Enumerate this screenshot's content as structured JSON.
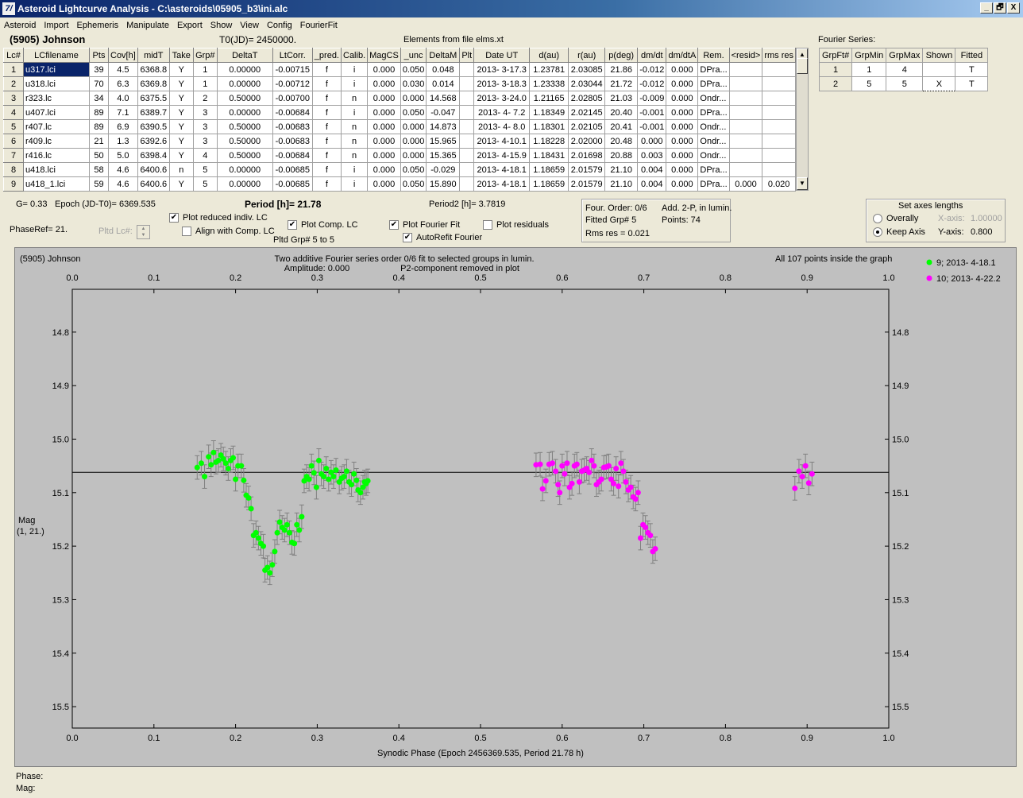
{
  "window": {
    "title": "Asteroid Lightcurve Analysis - C:\\asteroids\\05905_b3\\ini.alc",
    "app_icon": "7/",
    "controls": [
      "_",
      "🗗",
      "X"
    ]
  },
  "menu": [
    "Asteroid",
    "Import",
    "Ephemeris",
    "Manipulate",
    "Export",
    "Show",
    "View",
    "Config",
    "FourierFit"
  ],
  "header": {
    "object": "(5905) Johnson",
    "t0": "T0(JD)= 2450000.",
    "elements": "Elements from file elms.xt",
    "fourier_series_label": "Fourier Series:"
  },
  "table": {
    "columns": [
      "Lc#",
      "LCfilename",
      "Pts",
      "Cov[h]",
      "midT",
      "Take",
      "Grp#",
      "DeltaT",
      "LtCorr.",
      "_pred.",
      "Calib.",
      "MagCS",
      "_unc",
      "DeltaM",
      "Plt",
      "Date UT",
      "d(au)",
      "r(au)",
      "p(deg)",
      "dm/dt",
      "dm/dtA",
      "Rem.",
      "<resid>",
      "rms res"
    ],
    "rows": [
      [
        "1",
        "u317.lci",
        "39",
        "4.5",
        "6368.8",
        "Y",
        "1",
        "0.00000",
        "-0.00715",
        "f",
        "i",
        "0.000",
        "0.050",
        "0.048",
        "",
        "2013- 3-17.3",
        "1.23781",
        "2.03085",
        "21.86",
        "-0.012",
        "0.000",
        "DPra...",
        "",
        ""
      ],
      [
        "2",
        "u318.lci",
        "70",
        "6.3",
        "6369.8",
        "Y",
        "1",
        "0.00000",
        "-0.00712",
        "f",
        "i",
        "0.000",
        "0.030",
        "0.014",
        "",
        "2013- 3-18.3",
        "1.23338",
        "2.03044",
        "21.72",
        "-0.012",
        "0.000",
        "DPra...",
        "",
        ""
      ],
      [
        "3",
        "r323.lc",
        "34",
        "4.0",
        "6375.5",
        "Y",
        "2",
        "0.50000",
        "-0.00700",
        "f",
        "n",
        "0.000",
        "0.000",
        "14.568",
        "",
        "2013- 3-24.0",
        "1.21165",
        "2.02805",
        "21.03",
        "-0.009",
        "0.000",
        "Ondr...",
        "",
        ""
      ],
      [
        "4",
        "u407.lci",
        "89",
        "7.1",
        "6389.7",
        "Y",
        "3",
        "0.00000",
        "-0.00684",
        "f",
        "i",
        "0.000",
        "0.050",
        "-0.047",
        "",
        "2013- 4- 7.2",
        "1.18349",
        "2.02145",
        "20.40",
        "-0.001",
        "0.000",
        "DPra...",
        "",
        ""
      ],
      [
        "5",
        "r407.lc",
        "89",
        "6.9",
        "6390.5",
        "Y",
        "3",
        "0.50000",
        "-0.00683",
        "f",
        "n",
        "0.000",
        "0.000",
        "14.873",
        "",
        "2013- 4- 8.0",
        "1.18301",
        "2.02105",
        "20.41",
        "-0.001",
        "0.000",
        "Ondr...",
        "",
        ""
      ],
      [
        "6",
        "r409.lc",
        "21",
        "1.3",
        "6392.6",
        "Y",
        "3",
        "0.50000",
        "-0.00683",
        "f",
        "n",
        "0.000",
        "0.000",
        "15.965",
        "",
        "2013- 4-10.1",
        "1.18228",
        "2.02000",
        "20.48",
        "0.000",
        "0.000",
        "Ondr...",
        "",
        ""
      ],
      [
        "7",
        "r416.lc",
        "50",
        "5.0",
        "6398.4",
        "Y",
        "4",
        "0.50000",
        "-0.00684",
        "f",
        "n",
        "0.000",
        "0.000",
        "15.365",
        "",
        "2013- 4-15.9",
        "1.18431",
        "2.01698",
        "20.88",
        "0.003",
        "0.000",
        "Ondr...",
        "",
        ""
      ],
      [
        "8",
        "u418.lci",
        "58",
        "4.6",
        "6400.6",
        "n",
        "5",
        "0.00000",
        "-0.00685",
        "f",
        "i",
        "0.000",
        "0.050",
        "-0.029",
        "",
        "2013- 4-18.1",
        "1.18659",
        "2.01579",
        "21.10",
        "0.004",
        "0.000",
        "DPra...",
        "",
        ""
      ],
      [
        "9",
        "u418_1.lci",
        "59",
        "4.6",
        "6400.6",
        "Y",
        "5",
        "0.00000",
        "-0.00685",
        "f",
        "i",
        "0.000",
        "0.050",
        "15.890",
        "",
        "2013- 4-18.1",
        "1.18659",
        "2.01579",
        "21.10",
        "0.004",
        "0.000",
        "DPra...",
        "0.000",
        "0.020"
      ]
    ]
  },
  "fourier_table": {
    "columns": [
      "GrpFt#",
      "GrpMin",
      "GrpMax",
      "Shown",
      "Fitted"
    ],
    "rows": [
      [
        "1",
        "1",
        "4",
        "",
        "T"
      ],
      [
        "2",
        "5",
        "5",
        "X",
        "T"
      ]
    ]
  },
  "info": {
    "g": "G= 0.33",
    "epoch": "Epoch (JD-T0)= 6369.535",
    "period": "Period [h]= 21.78",
    "period2": "Period2 [h]= 3.7819",
    "phaseref": "PhaseRef= 21.",
    "pltd_lc": "Pltd Lc#:",
    "pltd_grp": "Pltd Grp#  5  to  5"
  },
  "checkboxes": {
    "plot_reduced": {
      "label": "Plot reduced indiv. LC",
      "checked": true
    },
    "align_comp": {
      "label": "Align with Comp. LC",
      "checked": false
    },
    "plot_comp": {
      "label": "Plot Comp. LC",
      "checked": true
    },
    "plot_fourier": {
      "label": "Plot Fourier Fit",
      "checked": true
    },
    "plot_residuals": {
      "label": "Plot residuals",
      "checked": false
    },
    "autorefit": {
      "label": "AutoRefit Fourier",
      "checked": true
    }
  },
  "fit_info": {
    "four_order": "Four. Order:  0/6",
    "add": "Add. 2-P, in lumin.",
    "fitted_grp": "Fitted Grp# 5",
    "points": "Points: 74",
    "rms": "Rms res     = 0.021"
  },
  "axes_box": {
    "title": "Set axes lengths",
    "overally": "Overally",
    "keep_axis": "Keep Axis",
    "xaxis_label": "X-axis:",
    "xaxis_val": "1.00000",
    "yaxis_label": "Y-axis:",
    "yaxis_val": "0.800",
    "selected": "keep_axis"
  },
  "plot": {
    "object": "(5905) Johnson",
    "line1": "Two additive Fourier series order 0/6 fit to selected groups in lumin.",
    "amplitude": "Amplitude: 0.000",
    "p2note": "P2-component removed in plot",
    "inside": "All 107 points inside the graph",
    "ylabel1": "Mag",
    "ylabel2": "(1, 21.)",
    "xlabel": "Synodic Phase (Epoch 2456369.535, Period 21.78 h)"
  },
  "status": {
    "phase": "Phase:",
    "mag": "Mag:"
  },
  "chart_data": {
    "type": "scatter",
    "x_ticks": [
      "0.0",
      "0.1",
      "0.2",
      "0.3",
      "0.4",
      "0.5",
      "0.6",
      "0.7",
      "0.8",
      "0.9",
      "1.0"
    ],
    "y_ticks": [
      "14.8",
      "14.9",
      "15.0",
      "15.1",
      "15.2",
      "15.3",
      "15.4",
      "15.5"
    ],
    "xlim": [
      0,
      1
    ],
    "ylim": [
      14.72,
      15.54
    ],
    "y_inverted": true,
    "fit_line": 15.062,
    "error_bar": 0.022,
    "legend_position": "top-right",
    "series": [
      {
        "name": "9; 2013- 4-18.1",
        "color": "#00ff00",
        "points": [
          [
            0.153,
            15.053
          ],
          [
            0.158,
            15.045
          ],
          [
            0.162,
            15.07
          ],
          [
            0.167,
            15.033
          ],
          [
            0.17,
            15.048
          ],
          [
            0.173,
            15.025
          ],
          [
            0.176,
            15.043
          ],
          [
            0.179,
            15.04
          ],
          [
            0.182,
            15.03
          ],
          [
            0.185,
            15.037
          ],
          [
            0.188,
            15.045
          ],
          [
            0.191,
            15.055
          ],
          [
            0.194,
            15.04
          ],
          [
            0.197,
            15.035
          ],
          [
            0.2,
            15.075
          ],
          [
            0.203,
            15.05
          ],
          [
            0.207,
            15.05
          ],
          [
            0.21,
            15.077
          ],
          [
            0.213,
            15.105
          ],
          [
            0.216,
            15.11
          ],
          [
            0.219,
            15.13
          ],
          [
            0.222,
            15.18
          ],
          [
            0.225,
            15.175
          ],
          [
            0.228,
            15.185
          ],
          [
            0.231,
            15.195
          ],
          [
            0.234,
            15.2
          ],
          [
            0.236,
            15.245
          ],
          [
            0.239,
            15.24
          ],
          [
            0.242,
            15.25
          ],
          [
            0.245,
            15.235
          ],
          [
            0.248,
            15.21
          ],
          [
            0.251,
            15.175
          ],
          [
            0.254,
            15.155
          ],
          [
            0.257,
            15.165
          ],
          [
            0.26,
            15.17
          ],
          [
            0.263,
            15.16
          ],
          [
            0.266,
            15.175
          ],
          [
            0.269,
            15.193
          ],
          [
            0.272,
            15.195
          ],
          [
            0.275,
            15.16
          ],
          [
            0.278,
            15.17
          ],
          [
            0.281,
            15.145
          ],
          [
            0.284,
            15.078
          ],
          [
            0.287,
            15.07
          ],
          [
            0.29,
            15.075
          ],
          [
            0.293,
            15.05
          ],
          [
            0.296,
            15.063
          ],
          [
            0.299,
            15.09
          ],
          [
            0.302,
            15.04
          ],
          [
            0.305,
            15.065
          ],
          [
            0.308,
            15.07
          ],
          [
            0.311,
            15.055
          ],
          [
            0.314,
            15.075
          ],
          [
            0.317,
            15.062
          ],
          [
            0.32,
            15.07
          ],
          [
            0.323,
            15.058
          ],
          [
            0.327,
            15.08
          ],
          [
            0.33,
            15.073
          ],
          [
            0.333,
            15.07
          ],
          [
            0.336,
            15.06
          ],
          [
            0.339,
            15.08
          ],
          [
            0.342,
            15.085
          ],
          [
            0.345,
            15.065
          ],
          [
            0.348,
            15.077
          ],
          [
            0.35,
            15.095
          ],
          [
            0.353,
            15.1
          ],
          [
            0.356,
            15.09
          ],
          [
            0.358,
            15.08
          ],
          [
            0.36,
            15.083
          ],
          [
            0.362,
            15.078
          ]
        ]
      },
      {
        "name": "10; 2013- 4-22.2",
        "color": "#ff00ff",
        "points": [
          [
            0.568,
            15.048
          ],
          [
            0.573,
            15.047
          ],
          [
            0.576,
            15.093
          ],
          [
            0.58,
            15.078
          ],
          [
            0.584,
            15.047
          ],
          [
            0.588,
            15.045
          ],
          [
            0.592,
            15.06
          ],
          [
            0.595,
            15.085
          ],
          [
            0.597,
            15.1
          ],
          [
            0.6,
            15.05
          ],
          [
            0.603,
            15.065
          ],
          [
            0.606,
            15.045
          ],
          [
            0.609,
            15.09
          ],
          [
            0.612,
            15.083
          ],
          [
            0.615,
            15.05
          ],
          [
            0.618,
            15.047
          ],
          [
            0.621,
            15.08
          ],
          [
            0.624,
            15.06
          ],
          [
            0.627,
            15.058
          ],
          [
            0.63,
            15.055
          ],
          [
            0.633,
            15.062
          ],
          [
            0.636,
            15.04
          ],
          [
            0.639,
            15.05
          ],
          [
            0.642,
            15.085
          ],
          [
            0.645,
            15.08
          ],
          [
            0.648,
            15.075
          ],
          [
            0.651,
            15.053
          ],
          [
            0.654,
            15.052
          ],
          [
            0.657,
            15.05
          ],
          [
            0.66,
            15.075
          ],
          [
            0.663,
            15.083
          ],
          [
            0.666,
            15.055
          ],
          [
            0.669,
            15.088
          ],
          [
            0.672,
            15.045
          ],
          [
            0.675,
            15.06
          ],
          [
            0.678,
            15.08
          ],
          [
            0.681,
            15.095
          ],
          [
            0.684,
            15.09
          ],
          [
            0.687,
            15.108
          ],
          [
            0.69,
            15.112
          ],
          [
            0.693,
            15.1
          ],
          [
            0.696,
            15.185
          ],
          [
            0.699,
            15.16
          ],
          [
            0.702,
            15.165
          ],
          [
            0.705,
            15.175
          ],
          [
            0.708,
            15.18
          ],
          [
            0.711,
            15.21
          ],
          [
            0.714,
            15.205
          ],
          [
            0.885,
            15.092
          ],
          [
            0.89,
            15.06
          ],
          [
            0.894,
            15.07
          ],
          [
            0.898,
            15.05
          ],
          [
            0.902,
            15.082
          ],
          [
            0.906,
            15.065
          ]
        ]
      }
    ]
  }
}
